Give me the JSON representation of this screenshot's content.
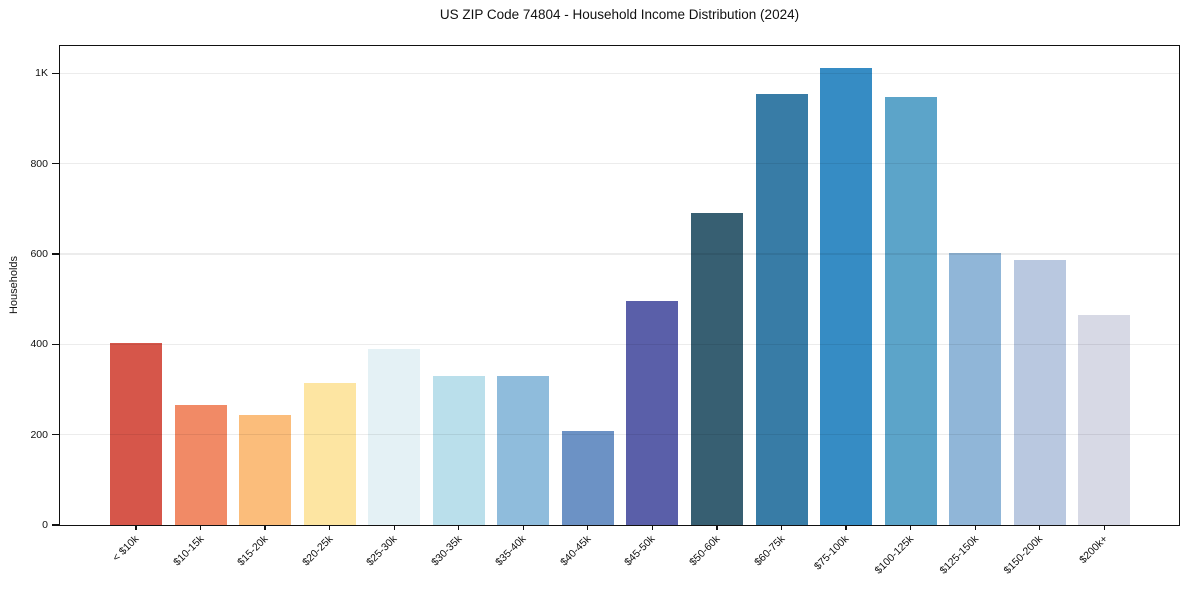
{
  "chart_data": {
    "type": "bar",
    "title": "US ZIP Code 74804 - Household Income Distribution (2024)",
    "xlabel": "",
    "ylabel": "Households",
    "categories": [
      "< $10k",
      "$10-15k",
      "$15-20k",
      "$20-25k",
      "$25-30k",
      "$30-35k",
      "$35-40k",
      "$40-45k",
      "$45-50k",
      "$50-60k",
      "$60-75k",
      "$75-100k",
      "$100-125k",
      "$125-150k",
      "$150-200k",
      "$200k+"
    ],
    "values": [
      402,
      265,
      243,
      315,
      389,
      330,
      330,
      208,
      495,
      690,
      955,
      1013,
      947,
      602,
      587,
      465
    ],
    "bar_colors": [
      "#d6564a",
      "#f18a66",
      "#fbbd7b",
      "#fde5a2",
      "#e4f1f5",
      "#badfeb",
      "#8fbcdc",
      "#6c92c5",
      "#5a5fa9",
      "#375f72",
      "#387ca6",
      "#368cc4",
      "#5ca4c9",
      "#90b6d8",
      "#b9c8e0",
      "#d7d9e5"
    ],
    "ytick_values": [
      0,
      200,
      400,
      600,
      800,
      1000
    ],
    "ytick_labels": [
      "0",
      "200",
      "400",
      "600",
      "800",
      "1K"
    ],
    "ylim": [
      0,
      1065
    ],
    "grid": "horizontal",
    "legend": "none",
    "frame_color": "#111111",
    "gridline_color": "#ececec",
    "background_color": "#ffffff"
  }
}
